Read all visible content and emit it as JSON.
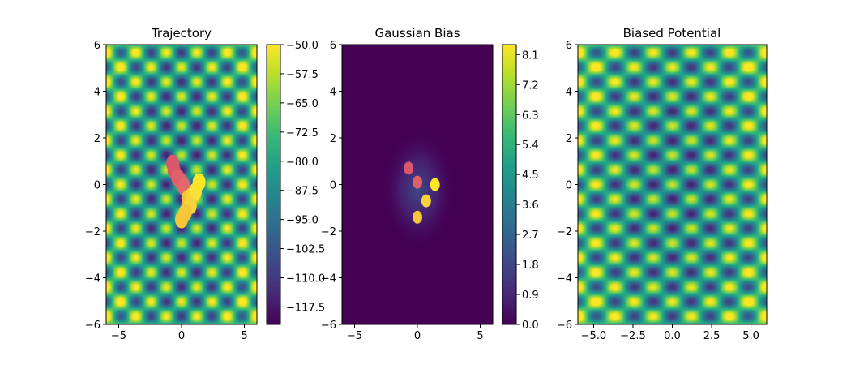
{
  "chart_data": [
    {
      "type": "heatmap",
      "title": "Trajectory",
      "xlabel": "",
      "ylabel": "",
      "xlim": [
        -6,
        6
      ],
      "ylim": [
        -6,
        6
      ],
      "x_ticks": [
        -5,
        0,
        5
      ],
      "x_tick_labels": [
        "−5",
        "0",
        "5"
      ],
      "y_ticks": [
        -6,
        -4,
        -2,
        0,
        2,
        4,
        6
      ],
      "y_tick_labels": [
        "−6",
        "−4",
        "−2",
        "0",
        "2",
        "4",
        "6"
      ],
      "colormap": "viridis",
      "colorbar": {
        "min": -122,
        "max": -50,
        "ticks": [
          -50.0,
          -57.5,
          -65.0,
          -72.5,
          -80.0,
          -87.5,
          -95.0,
          -102.5,
          -110.0,
          -117.5
        ],
        "tick_labels": [
          "−50.0",
          "−57.5",
          "−65.0",
          "−72.5",
          "−80.0",
          "−87.5",
          "−95.0",
          "−102.5",
          "−110.0",
          "−117.5"
        ]
      },
      "trajectory_points": [
        {
          "x": -0.7,
          "y": 0.9,
          "color": "#d9566b"
        },
        {
          "x": -0.6,
          "y": 0.6,
          "color": "#d9566b"
        },
        {
          "x": -0.3,
          "y": 0.3,
          "color": "#e0606a"
        },
        {
          "x": 0.0,
          "y": 0.1,
          "color": "#e0606a"
        },
        {
          "x": 0.2,
          "y": -0.1,
          "color": "#e5676a"
        },
        {
          "x": 0.5,
          "y": -0.6,
          "color": "#f3c23a"
        },
        {
          "x": 0.8,
          "y": -0.5,
          "color": "#f7d13a"
        },
        {
          "x": 1.1,
          "y": -0.3,
          "color": "#fbe139"
        },
        {
          "x": 1.4,
          "y": 0.1,
          "color": "#fde725"
        },
        {
          "x": 0.7,
          "y": -0.9,
          "color": "#f8d33b"
        },
        {
          "x": 0.3,
          "y": -1.2,
          "color": "#f5c637"
        },
        {
          "x": 0.0,
          "y": -1.5,
          "color": "#f5c637"
        }
      ]
    },
    {
      "type": "heatmap",
      "title": "Gaussian Bias",
      "xlabel": "",
      "ylabel": "",
      "xlim": [
        -6,
        6
      ],
      "ylim": [
        -6,
        6
      ],
      "x_ticks": [
        -5,
        0,
        5
      ],
      "x_tick_labels": [
        "−5",
        "0",
        "5"
      ],
      "y_ticks": [
        -6,
        -4,
        -2,
        0,
        2,
        4,
        6
      ],
      "y_tick_labels": [
        "−6",
        "−4",
        "−2",
        "0",
        "2",
        "4",
        "6"
      ],
      "colormap": "viridis",
      "colorbar": {
        "min": 0,
        "max": 8.4,
        "ticks": [
          0.0,
          0.9,
          1.8,
          2.7,
          3.6,
          4.5,
          5.4,
          6.3,
          7.2,
          8.1
        ],
        "tick_labels": [
          "0.0",
          "0.9",
          "1.8",
          "2.7",
          "3.6",
          "4.5",
          "5.4",
          "6.3",
          "7.2",
          "8.1"
        ]
      },
      "hotspots": [
        {
          "x": -0.7,
          "y": 0.7,
          "color": "#d9566b"
        },
        {
          "x": 0.0,
          "y": 0.1,
          "color": "#e0606a"
        },
        {
          "x": 1.4,
          "y": 0.0,
          "color": "#fde725"
        },
        {
          "x": 0.7,
          "y": -0.7,
          "color": "#f8d33b"
        },
        {
          "x": 0.0,
          "y": -1.4,
          "color": "#f5c637"
        }
      ]
    },
    {
      "type": "heatmap",
      "title": "Biased Potential",
      "xlabel": "",
      "ylabel": "",
      "xlim": [
        -6,
        6
      ],
      "ylim": [
        -6,
        6
      ],
      "x_ticks": [
        -5.0,
        -2.5,
        0.0,
        2.5,
        5.0
      ],
      "x_tick_labels": [
        "−5.0",
        "−2.5",
        "0.0",
        "2.5",
        "5.0"
      ],
      "y_ticks": [
        -6,
        -4,
        -2,
        0,
        2,
        4,
        6
      ],
      "y_tick_labels": [
        "−6",
        "−4",
        "−2",
        "0",
        "2",
        "4",
        "6"
      ],
      "colormap": "viridis"
    }
  ]
}
